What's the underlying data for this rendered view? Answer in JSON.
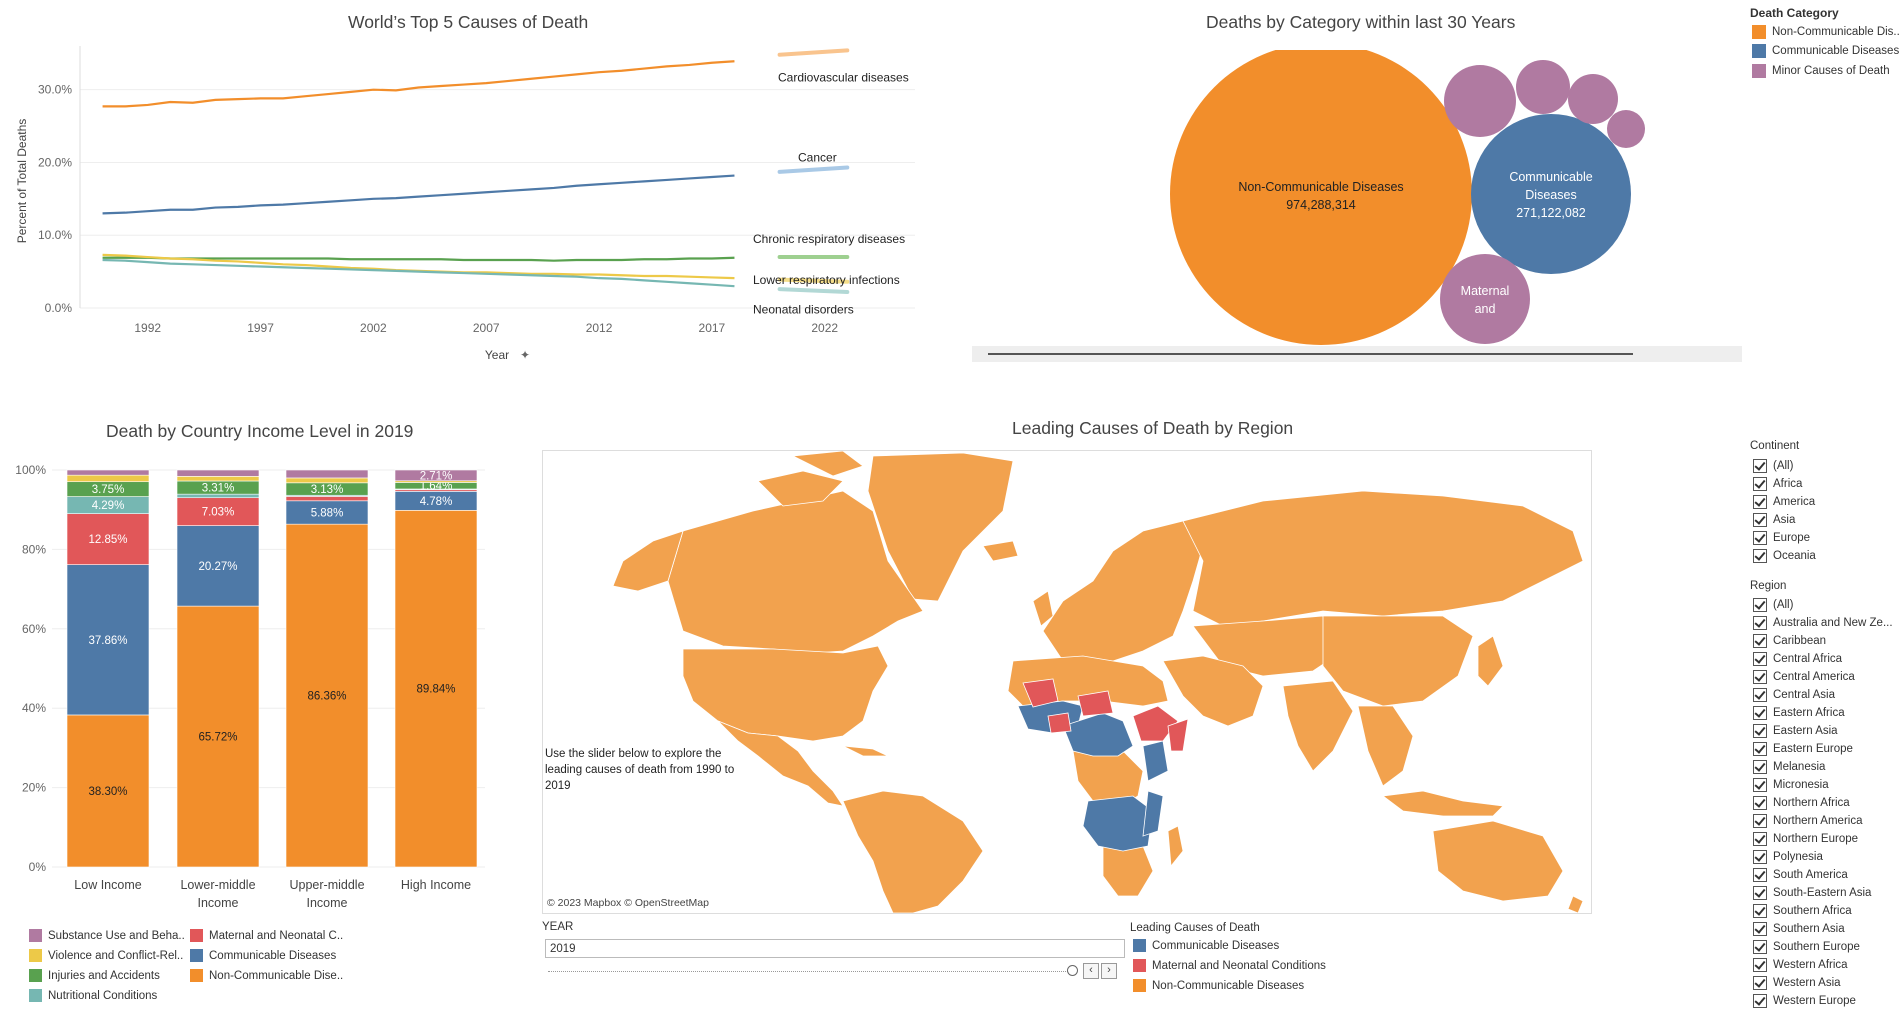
{
  "colors": {
    "orange": "#F28E2B",
    "blue": "#4E79A7",
    "red": "#E15759",
    "green": "#59A14F",
    "yellow": "#EDC948",
    "teal": "#76B7B2",
    "purple": "#B07AA1",
    "light_orange": "#F9C48E",
    "light_blue": "#A9C9E6",
    "light_yellow": "#F5DE8A",
    "light_green": "#9ED090",
    "light_teal": "#B2D8D5"
  },
  "line_panel": {
    "title": "World’s Top 5 Causes of Death",
    "ylabel": "Percent of Total Deaths",
    "xlabel": "Year",
    "y_ticks": [
      "30.0%",
      "20.0%",
      "10.0%",
      "0.0%"
    ],
    "x_ticks": [
      "1992",
      "1997",
      "2002",
      "2007",
      "2012",
      "2017",
      "2022"
    ],
    "series_labels": [
      "Cardiovascular diseases",
      "Cancer",
      "Chronic respiratory diseases",
      "Lower respiratory infections",
      "Neonatal disorders"
    ]
  },
  "bubble_panel": {
    "title": "Deaths by Category within last 30 Years",
    "bubbles": [
      {
        "name": "Non-Communicable Diseases",
        "value": "974,288,314"
      },
      {
        "name": "Communicable Diseases",
        "value": "271,122,082"
      },
      {
        "name": "Maternal and"
      }
    ],
    "legend_title": "Death Category",
    "legend": [
      "Non-Communicable Dis..",
      "Communicable Diseases",
      "Minor Causes of Death"
    ]
  },
  "bar_panel": {
    "title": "Death by Country Income Level in 2019",
    "y_ticks": [
      "100%",
      "80%",
      "60%",
      "40%",
      "20%",
      "0%"
    ],
    "legend": [
      "Substance Use and Beha..",
      "Violence and Conflict-Rel..",
      "Injuries and Accidents",
      "Nutritional Conditions",
      "Maternal and Neonatal C..",
      "Communicable Diseases",
      "Non-Communicable Dise.."
    ]
  },
  "map_panel": {
    "title": "Leading Causes of Death by Region",
    "note": "Use the slider below to explore the leading causes of death from 1990 to 2019",
    "attribution": "© 2023 Mapbox © OpenStreetMap",
    "slider_label": "YEAR",
    "slider_value": "2019",
    "legend_title": "Leading Causes of Death",
    "legend": [
      "Communicable Diseases",
      "Maternal and Neonatal Conditions",
      "Non-Communicable Diseases"
    ]
  },
  "filters": {
    "continent_title": "Continent",
    "continents": [
      "(All)",
      "Africa",
      "America",
      "Asia",
      "Europe",
      "Oceania"
    ],
    "region_title": "Region",
    "regions": [
      "(All)",
      "Australia and New Ze...",
      "Caribbean",
      "Central Africa",
      "Central America",
      "Central Asia",
      "Eastern Africa",
      "Eastern Asia",
      "Eastern Europe",
      "Melanesia",
      "Micronesia",
      "Northern Africa",
      "Northern America",
      "Northern Europe",
      "Polynesia",
      "South America",
      "South-Eastern Asia",
      "Southern Africa",
      "Southern Asia",
      "Southern Europe",
      "Western Africa",
      "Western Asia",
      "Western Europe"
    ]
  },
  "chart_data": [
    {
      "type": "line",
      "title": "World’s Top 5 Causes of Death",
      "xlabel": "Year",
      "ylabel": "Percent of Total Deaths",
      "ylim": [
        0,
        36
      ],
      "xlim": [
        1989,
        2026
      ],
      "x": [
        1990,
        1991,
        1992,
        1993,
        1994,
        1995,
        1996,
        1997,
        1998,
        1999,
        2000,
        2001,
        2002,
        2003,
        2004,
        2005,
        2006,
        2007,
        2008,
        2009,
        2010,
        2011,
        2012,
        2013,
        2014,
        2015,
        2016,
        2017,
        2018
      ],
      "series": [
        {
          "name": "Cardiovascular diseases",
          "values": [
            27.7,
            27.7,
            27.9,
            28.3,
            28.2,
            28.6,
            28.7,
            28.8,
            28.8,
            29.1,
            29.4,
            29.7,
            30.0,
            29.9,
            30.3,
            30.5,
            30.7,
            30.9,
            31.2,
            31.5,
            31.8,
            32.1,
            32.4,
            32.6,
            32.9,
            33.2,
            33.4,
            33.7,
            33.9
          ],
          "forecast": {
            "x": [
              2020,
              2023
            ],
            "values": [
              34.8,
              35.4
            ]
          }
        },
        {
          "name": "Cancer",
          "values": [
            13.0,
            13.1,
            13.3,
            13.5,
            13.5,
            13.8,
            13.9,
            14.1,
            14.2,
            14.4,
            14.6,
            14.8,
            15.0,
            15.1,
            15.3,
            15.5,
            15.7,
            15.9,
            16.1,
            16.3,
            16.5,
            16.8,
            17.0,
            17.2,
            17.4,
            17.6,
            17.8,
            18.0,
            18.2
          ],
          "forecast": {
            "x": [
              2020,
              2023
            ],
            "values": [
              18.7,
              19.3
            ]
          }
        },
        {
          "name": "Chronic respiratory diseases",
          "values": [
            6.9,
            6.9,
            6.9,
            6.8,
            6.8,
            6.8,
            6.8,
            6.8,
            6.8,
            6.8,
            6.8,
            6.7,
            6.7,
            6.7,
            6.7,
            6.7,
            6.6,
            6.6,
            6.6,
            6.6,
            6.5,
            6.6,
            6.6,
            6.6,
            6.7,
            6.7,
            6.8,
            6.8,
            6.9
          ],
          "forecast": {
            "x": [
              2020,
              2023
            ],
            "values": [
              7.0,
              7.0
            ]
          }
        },
        {
          "name": "Lower respiratory infections",
          "values": [
            7.3,
            7.2,
            7.0,
            6.8,
            6.7,
            6.5,
            6.4,
            6.2,
            6.0,
            5.9,
            5.7,
            5.5,
            5.4,
            5.2,
            5.1,
            5.0,
            4.9,
            4.9,
            4.8,
            4.7,
            4.7,
            4.6,
            4.6,
            4.5,
            4.4,
            4.4,
            4.3,
            4.2,
            4.1
          ],
          "forecast": {
            "x": [
              2020,
              2023
            ],
            "values": [
              3.9,
              3.6
            ]
          }
        },
        {
          "name": "Neonatal disorders",
          "values": [
            6.6,
            6.5,
            6.3,
            6.1,
            6.0,
            5.9,
            5.8,
            5.7,
            5.6,
            5.5,
            5.4,
            5.3,
            5.2,
            5.1,
            5.0,
            4.9,
            4.8,
            4.7,
            4.6,
            4.5,
            4.4,
            4.3,
            4.1,
            4.0,
            3.8,
            3.6,
            3.4,
            3.2,
            3.0
          ],
          "forecast": {
            "x": [
              2020,
              2023
            ],
            "values": [
              2.6,
              2.2
            ]
          }
        }
      ]
    },
    {
      "type": "bubble",
      "title": "Deaths by Category within last 30 Years",
      "series": [
        {
          "name": "Non-Communicable Diseases",
          "value": 974288314
        },
        {
          "name": "Communicable Diseases",
          "value": 271122082
        },
        {
          "name": "Maternal and"
        }
      ]
    },
    {
      "type": "bar",
      "stacked": true,
      "title": "Death by Country Income Level in 2019",
      "categories": [
        [
          "Low Income"
        ],
        [
          "Lower-middle",
          "Income"
        ],
        [
          "Upper-middle",
          "Income"
        ],
        [
          "High Income"
        ]
      ],
      "ylim": [
        0,
        100
      ],
      "series": [
        {
          "name": "Non-Communicable Dise..",
          "values": [
            38.3,
            65.72,
            86.36,
            89.84
          ],
          "labels": [
            "38.30%",
            "65.72%",
            "86.36%",
            "89.84%"
          ]
        },
        {
          "name": "Communicable Diseases",
          "values": [
            37.86,
            20.27,
            5.88,
            4.78
          ],
          "labels": [
            "37.86%",
            "20.27%",
            "5.88%",
            "4.78%"
          ]
        },
        {
          "name": "Maternal and Neonatal C..",
          "values": [
            12.85,
            7.03,
            1.1,
            0.4
          ],
          "labels": [
            "12.85%",
            "7.03%",
            "",
            ""
          ]
        },
        {
          "name": "Nutritional Conditions",
          "values": [
            4.29,
            0.9,
            0.3,
            0.2
          ],
          "labels": [
            "4.29%",
            "",
            "",
            ""
          ]
        },
        {
          "name": "Injuries and Accidents",
          "values": [
            3.75,
            3.31,
            3.13,
            1.64
          ],
          "labels": [
            "3.75%",
            "3.31%",
            "3.13%",
            "1.64%"
          ]
        },
        {
          "name": "Violence and Conflict-Rel..",
          "values": [
            1.65,
            1.17,
            1.23,
            0.43
          ],
          "labels": [
            "",
            "",
            "",
            ""
          ]
        },
        {
          "name": "Substance Use and Beha..",
          "values": [
            1.3,
            1.6,
            2.0,
            2.71
          ],
          "labels": [
            "",
            "",
            "",
            "2.71%"
          ]
        }
      ]
    }
  ]
}
